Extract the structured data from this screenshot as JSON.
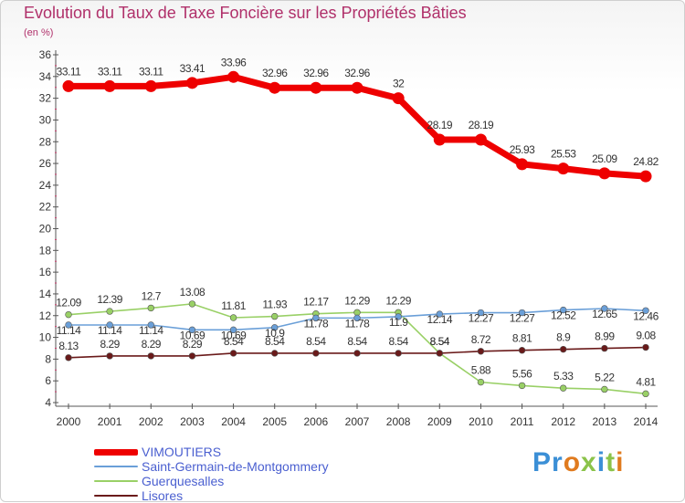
{
  "chart_data": {
    "type": "line",
    "title": "Evolution du Taux de Taxe Foncière sur les Propriétés Bâties",
    "unit_label": "(en %)",
    "xlabel": "",
    "ylabel": "",
    "x": [
      2000,
      2001,
      2002,
      2003,
      2004,
      2005,
      2006,
      2007,
      2008,
      2009,
      2010,
      2011,
      2012,
      2013,
      2014
    ],
    "y_ticks": [
      4,
      6,
      8,
      10,
      12,
      14,
      16,
      18,
      20,
      22,
      24,
      26,
      28,
      30,
      32,
      34,
      36
    ],
    "ylim": [
      4,
      36
    ],
    "grid": false,
    "legend_position": "bottom-left",
    "series": [
      {
        "name": "VIMOUTIERS",
        "color": "#ee0000",
        "values": [
          33.11,
          33.11,
          33.11,
          33.41,
          33.96,
          32.96,
          32.96,
          32.96,
          32,
          28.19,
          28.19,
          25.93,
          25.53,
          25.09,
          24.82
        ],
        "labels": [
          "33.11",
          "33.11",
          "33.11",
          "33.41",
          "33.96",
          "32.96",
          "32.96",
          "32.96",
          "32",
          "28.19",
          "28.19",
          "25.93",
          "25.53",
          "25.09",
          "24.82"
        ]
      },
      {
        "name": "Saint-Germain-de-Montgommery",
        "color": "#6a9fd8",
        "values": [
          11.14,
          11.14,
          11.14,
          10.69,
          10.69,
          10.9,
          11.78,
          11.78,
          11.9,
          12.14,
          12.27,
          12.27,
          12.52,
          12.65,
          12.46
        ],
        "labels": [
          "11.14",
          "11.14",
          "11.14",
          "10.69",
          "10.69",
          "10.9",
          "11.78",
          "11.78",
          "11.9",
          "12.14",
          "12.27",
          "12.27",
          "12.52",
          "12.65",
          "12.46"
        ]
      },
      {
        "name": "Guerquesalles",
        "color": "#99d066",
        "values": [
          12.09,
          12.39,
          12.7,
          13.08,
          11.81,
          11.93,
          12.17,
          12.29,
          12.29,
          8.54,
          5.88,
          5.56,
          5.33,
          5.22,
          4.81
        ],
        "labels": [
          "12.09",
          "12.39",
          "12.7",
          "13.08",
          "11.81",
          "11.93",
          "12.17",
          "12.29",
          "12.29",
          "8.54",
          "5.88",
          "5.56",
          "5.33",
          "5.22",
          "4.81"
        ]
      },
      {
        "name": "Lisores",
        "color": "#6a1a1a",
        "values": [
          8.13,
          8.29,
          8.29,
          8.29,
          8.54,
          8.54,
          8.54,
          8.54,
          8.54,
          8.54,
          8.72,
          8.81,
          8.9,
          8.99,
          9.08
        ],
        "labels": [
          "8.13",
          "8.29",
          "8.29",
          "8.29",
          "8.54",
          "8.54",
          "8.54",
          "8.54",
          "8.54",
          "8.54",
          "8.72",
          "8.81",
          "8.9",
          "8.99",
          "9.08"
        ]
      }
    ]
  },
  "branding": {
    "logo_text": "Proxiti",
    "letter_colors": [
      "#3b8fd6",
      "#3b8fd6",
      "#e07b1f",
      "#8bc34a",
      "#3b8fd6",
      "#8bc34a",
      "#e07b1f"
    ]
  }
}
